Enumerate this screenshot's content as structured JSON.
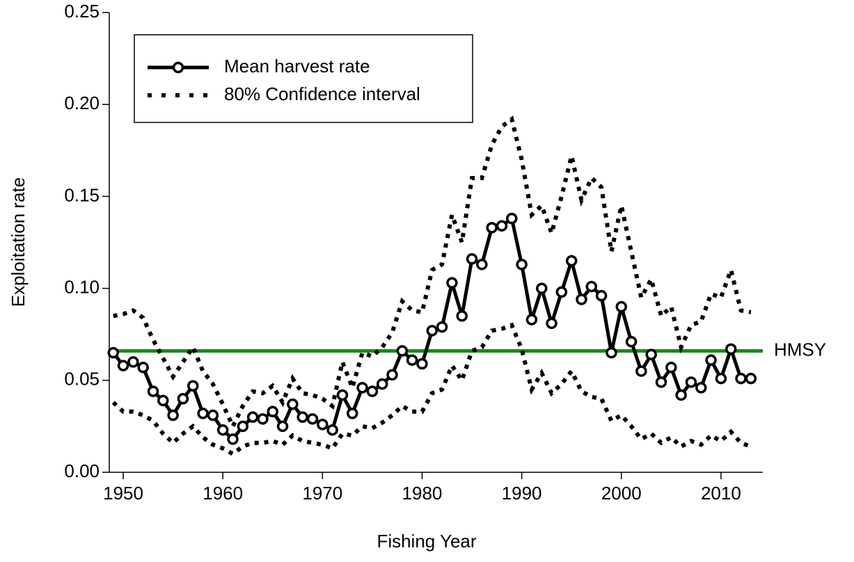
{
  "chart_data": {
    "type": "line",
    "x_label": "Fishing Year",
    "y_label": "Exploitation rate",
    "x": [
      1949,
      1950,
      1951,
      1952,
      1953,
      1954,
      1955,
      1956,
      1957,
      1958,
      1959,
      1960,
      1961,
      1962,
      1963,
      1964,
      1965,
      1966,
      1967,
      1968,
      1969,
      1970,
      1971,
      1972,
      1973,
      1974,
      1975,
      1976,
      1977,
      1978,
      1979,
      1980,
      1981,
      1982,
      1983,
      1984,
      1985,
      1986,
      1987,
      1988,
      1989,
      1990,
      1991,
      1992,
      1993,
      1994,
      1995,
      1996,
      1997,
      1998,
      1999,
      2000,
      2001,
      2002,
      2003,
      2004,
      2005,
      2006,
      2007,
      2008,
      2009,
      2010,
      2011,
      2012,
      2013
    ],
    "series": [
      {
        "name": "Mean harvest rate",
        "color": "#000000",
        "style": "solid-circles",
        "values": [
          0.065,
          0.058,
          0.06,
          0.057,
          0.044,
          0.039,
          0.031,
          0.04,
          0.047,
          0.032,
          0.031,
          0.023,
          0.018,
          0.025,
          0.03,
          0.029,
          0.033,
          0.025,
          0.037,
          0.03,
          0.029,
          0.026,
          0.023,
          0.042,
          0.032,
          0.046,
          0.044,
          0.048,
          0.053,
          0.066,
          0.061,
          0.059,
          0.077,
          0.079,
          0.103,
          0.085,
          0.116,
          0.113,
          0.133,
          0.134,
          0.138,
          0.113,
          0.083,
          0.1,
          0.081,
          0.098,
          0.115,
          0.094,
          0.101,
          0.096,
          0.065,
          0.09,
          0.071,
          0.055,
          0.064,
          0.049,
          0.057,
          0.042,
          0.049,
          0.046,
          0.061,
          0.051,
          0.067,
          0.051,
          0.051
        ]
      },
      {
        "name": "80% Confidence interval",
        "color": "#000000",
        "style": "dotted",
        "values": [
          0.085,
          0.086,
          0.088,
          0.084,
          0.072,
          0.062,
          0.052,
          0.06,
          0.068,
          0.055,
          0.048,
          0.037,
          0.025,
          0.036,
          0.044,
          0.043,
          0.047,
          0.038,
          0.051,
          0.043,
          0.042,
          0.04,
          0.036,
          0.06,
          0.046,
          0.065,
          0.063,
          0.068,
          0.076,
          0.093,
          0.088,
          0.087,
          0.11,
          0.113,
          0.14,
          0.125,
          0.16,
          0.16,
          0.178,
          0.188,
          0.192,
          0.17,
          0.14,
          0.145,
          0.13,
          0.15,
          0.172,
          0.148,
          0.16,
          0.155,
          0.12,
          0.145,
          0.12,
          0.095,
          0.105,
          0.085,
          0.09,
          0.068,
          0.08,
          0.082,
          0.097,
          0.095,
          0.11,
          0.088,
          0.087
        ],
        "lower_values": [
          0.038,
          0.033,
          0.033,
          0.031,
          0.028,
          0.021,
          0.016,
          0.021,
          0.025,
          0.019,
          0.015,
          0.013,
          0.01,
          0.014,
          0.016,
          0.016,
          0.017,
          0.015,
          0.02,
          0.017,
          0.016,
          0.015,
          0.013,
          0.021,
          0.02,
          0.025,
          0.024,
          0.027,
          0.031,
          0.036,
          0.033,
          0.033,
          0.043,
          0.045,
          0.058,
          0.05,
          0.066,
          0.068,
          0.077,
          0.078,
          0.08,
          0.067,
          0.045,
          0.054,
          0.043,
          0.048,
          0.055,
          0.044,
          0.041,
          0.04,
          0.028,
          0.031,
          0.025,
          0.018,
          0.021,
          0.016,
          0.019,
          0.014,
          0.017,
          0.015,
          0.02,
          0.017,
          0.022,
          0.016,
          0.014
        ]
      }
    ],
    "reference_lines": [
      {
        "value": 0.066,
        "label": "HMSY",
        "color": "#1a8a1a"
      }
    ],
    "xlim": [
      1948.6,
      2014.2
    ],
    "xticks": [
      1950,
      1960,
      1970,
      1980,
      1990,
      2000,
      2010
    ],
    "ylim": [
      0,
      0.25
    ],
    "yticks": [
      {
        "value": 0,
        "label": "0.00"
      },
      0.05,
      {
        "value": 0.1,
        "label": "0.10"
      },
      0.15,
      {
        "value": 0.2,
        "label": "0.20"
      },
      0.25
    ],
    "legend": "upper-left"
  }
}
